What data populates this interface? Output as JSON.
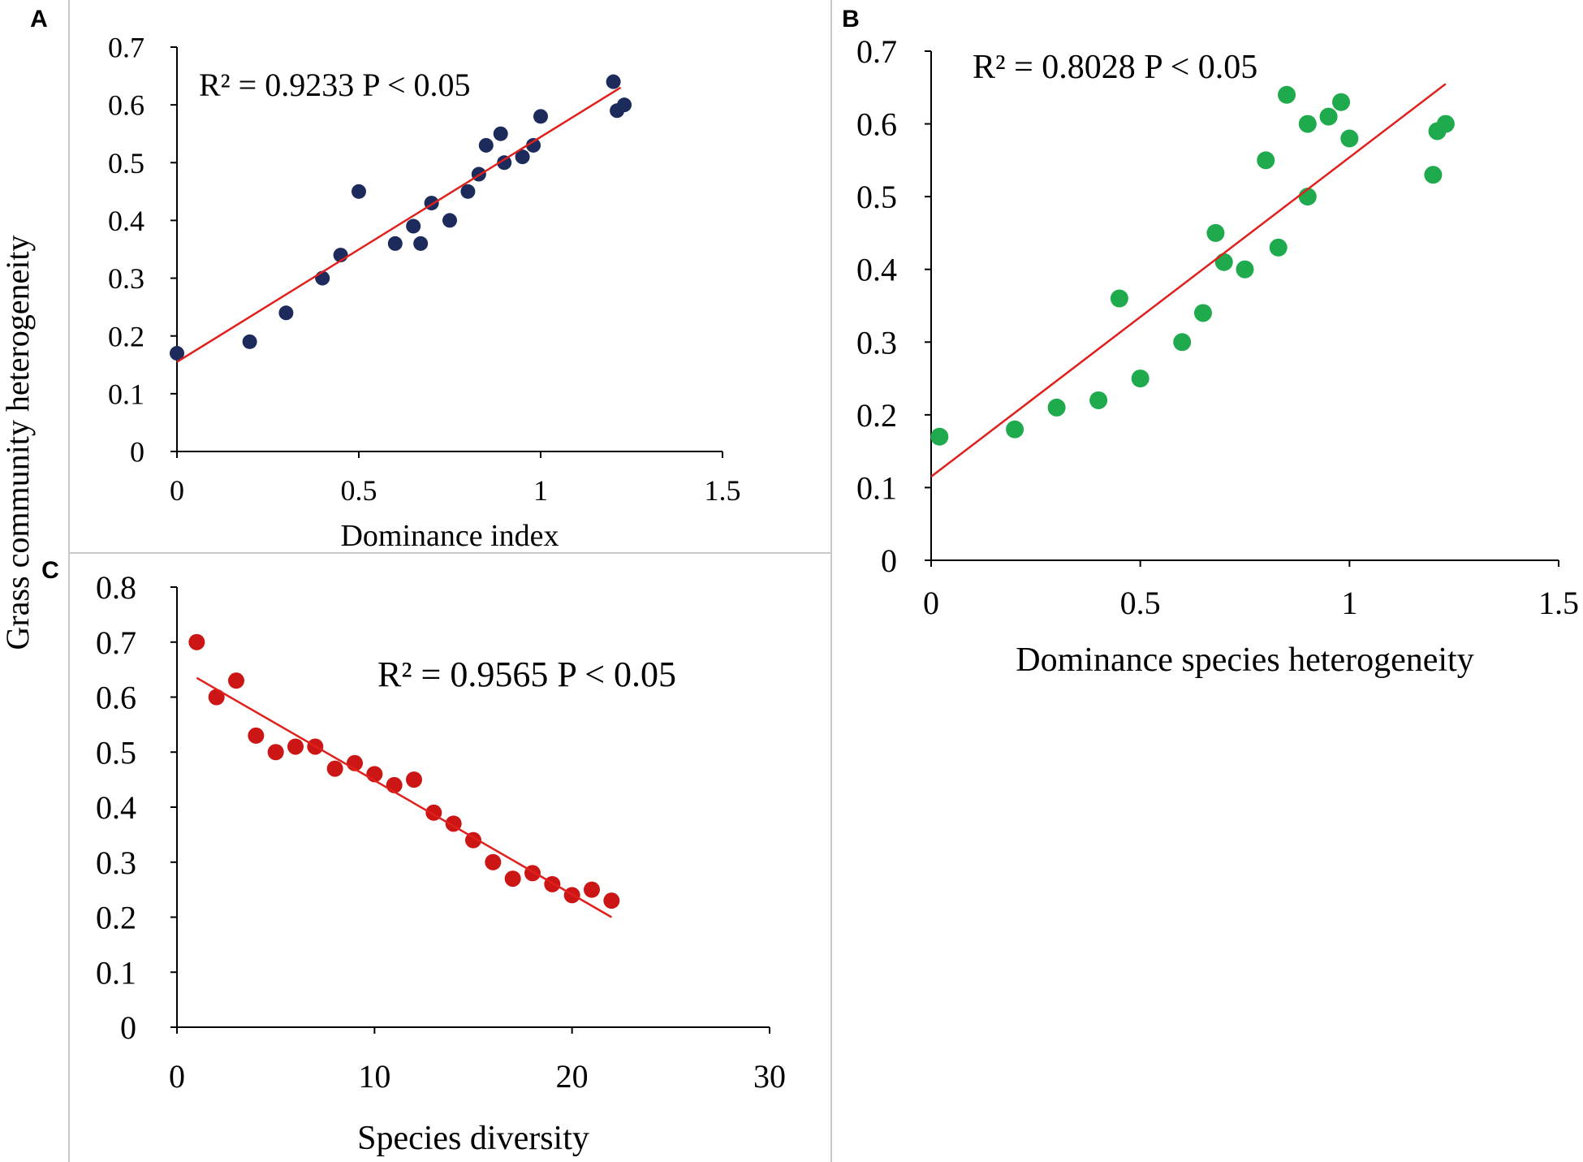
{
  "figure": {
    "shared_ylabel": "Grass community heterogeneity"
  },
  "chart_data": [
    {
      "panel": "A",
      "type": "scatter",
      "xlabel": "Dominance index",
      "ylabel": "Grass community heterogeneity",
      "annotation": "R² = 0.9233 P < 0.05",
      "xlim": [
        0,
        1.5
      ],
      "ylim": [
        0,
        0.7
      ],
      "xticks": [
        0,
        0.5,
        1,
        1.5
      ],
      "xtick_labels": [
        "0",
        "0.5",
        "1",
        "1.5"
      ],
      "yticks": [
        0,
        0.1,
        0.2,
        0.3,
        0.4,
        0.5,
        0.6,
        0.7
      ],
      "ytick_labels": [
        "0",
        "0.1",
        "0.2",
        "0.3",
        "0.4",
        "0.5",
        "0.6",
        "0.7"
      ],
      "marker_color": "#1c2a5c",
      "trend_color": "#e0201c",
      "trend": {
        "x": [
          0,
          1.22
        ],
        "y": [
          0.155,
          0.63
        ]
      },
      "series": [
        {
          "name": "observations",
          "x": [
            0.0,
            0.2,
            0.3,
            0.4,
            0.45,
            0.5,
            0.6,
            0.65,
            0.67,
            0.7,
            0.75,
            0.8,
            0.83,
            0.85,
            0.89,
            0.9,
            0.95,
            0.98,
            1.0,
            1.2,
            1.21,
            1.23
          ],
          "y": [
            0.17,
            0.19,
            0.24,
            0.3,
            0.34,
            0.45,
            0.36,
            0.39,
            0.36,
            0.43,
            0.4,
            0.45,
            0.48,
            0.53,
            0.55,
            0.5,
            0.51,
            0.53,
            0.58,
            0.64,
            0.59,
            0.6
          ]
        }
      ]
    },
    {
      "panel": "B",
      "type": "scatter",
      "xlabel": "Dominance species heterogeneity",
      "ylabel": "",
      "annotation": "R² = 0.8028 P < 0.05",
      "xlim": [
        0,
        1.5
      ],
      "ylim": [
        0,
        0.7
      ],
      "xticks": [
        0,
        0.5,
        1,
        1.5
      ],
      "xtick_labels": [
        "0",
        "0.5",
        "1",
        "1.5"
      ],
      "yticks": [
        0,
        0.1,
        0.2,
        0.3,
        0.4,
        0.5,
        0.6,
        0.7
      ],
      "ytick_labels": [
        "0",
        "0.1",
        "0.2",
        "0.3",
        "0.4",
        "0.5",
        "0.6",
        "0.7"
      ],
      "marker_color": "#1faa4e",
      "trend_color": "#e0201c",
      "trend": {
        "x": [
          0,
          1.23
        ],
        "y": [
          0.115,
          0.655
        ]
      },
      "series": [
        {
          "name": "observations",
          "x": [
            0.02,
            0.2,
            0.3,
            0.4,
            0.45,
            0.5,
            0.6,
            0.65,
            0.68,
            0.7,
            0.75,
            0.8,
            0.83,
            0.85,
            0.9,
            0.9,
            0.95,
            0.98,
            1.0,
            1.2,
            1.21,
            1.23
          ],
          "y": [
            0.17,
            0.18,
            0.21,
            0.22,
            0.36,
            0.25,
            0.3,
            0.34,
            0.45,
            0.41,
            0.4,
            0.55,
            0.43,
            0.64,
            0.6,
            0.5,
            0.61,
            0.63,
            0.58,
            0.53,
            0.59,
            0.6
          ]
        }
      ]
    },
    {
      "panel": "C",
      "type": "scatter",
      "xlabel": "Species diversity",
      "ylabel": "Grass community heterogeneity",
      "annotation": "R² = 0.9565 P < 0.05",
      "xlim": [
        0,
        30
      ],
      "ylim": [
        0,
        0.8
      ],
      "xticks": [
        0,
        10,
        20,
        30
      ],
      "xtick_labels": [
        "0",
        "10",
        "20",
        "30"
      ],
      "yticks": [
        0,
        0.1,
        0.2,
        0.3,
        0.4,
        0.5,
        0.6,
        0.7,
        0.8
      ],
      "ytick_labels": [
        "0",
        "0.1",
        "0.2",
        "0.3",
        "0.4",
        "0.5",
        "0.6",
        "0.7",
        "0.8"
      ],
      "marker_color": "#cc1515",
      "trend_color": "#e0201c",
      "trend": {
        "x": [
          1,
          22
        ],
        "y": [
          0.635,
          0.2
        ]
      },
      "series": [
        {
          "name": "observations",
          "x": [
            1,
            2,
            3,
            4,
            5,
            6,
            7,
            8,
            9,
            10,
            11,
            12,
            13,
            14,
            15,
            16,
            17,
            18,
            19,
            20,
            21,
            22
          ],
          "y": [
            0.7,
            0.6,
            0.63,
            0.53,
            0.5,
            0.51,
            0.51,
            0.47,
            0.48,
            0.46,
            0.44,
            0.45,
            0.39,
            0.37,
            0.34,
            0.3,
            0.27,
            0.28,
            0.26,
            0.24,
            0.25,
            0.23
          ]
        }
      ]
    }
  ]
}
